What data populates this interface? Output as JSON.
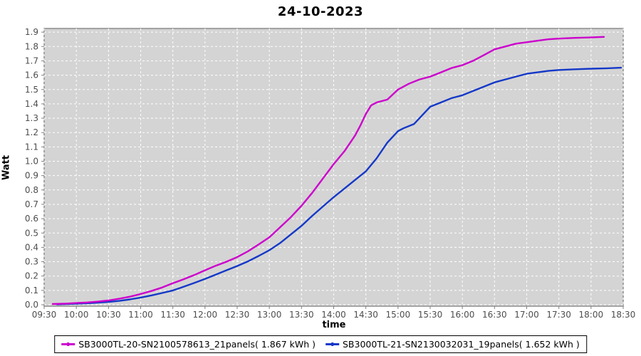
{
  "title": "24-10-2023",
  "colors": {
    "outer_bg": "#FFFFFF",
    "plot_bg": "#D4D4D4",
    "grid": "#FFFFFF",
    "plot_border": "#8C8C8C",
    "axis_tick": "#808080",
    "tick_label": "#4D4D4D",
    "legend_border": "#000000",
    "series_magenta": "#CC00CC",
    "series_blue": "#1438C8"
  },
  "chart_data": {
    "type": "line",
    "title": "24-10-2023",
    "xlabel": "time",
    "ylabel": "Watt",
    "x_ticks": [
      "09:30",
      "10:00",
      "10:30",
      "11:00",
      "11:30",
      "12:00",
      "12:30",
      "13:00",
      "13:30",
      "14:00",
      "14:30",
      "15:00",
      "15:30",
      "16:00",
      "16:30",
      "17:00",
      "17:30",
      "18:00",
      "18:30"
    ],
    "y_ticks": [
      "0.0",
      "0.1",
      "0.2",
      "0.3",
      "0.4",
      "0.5",
      "0.6",
      "0.7",
      "0.8",
      "0.9",
      "1.0",
      "1.1",
      "1.2",
      "1.3",
      "1.4",
      "1.5",
      "1.6",
      "1.7",
      "1.8",
      "1.9"
    ],
    "x_range": [
      "09:30",
      "18:30"
    ],
    "ylim": [
      0,
      1.93
    ],
    "grid": "white dashed gridlines on light gray plot background",
    "legend_position": "bottom-center",
    "series": [
      {
        "name": "SB3000TL-20-SN2100578613_21panels",
        "legend_label": "SB3000TL-20-SN2100578613_21panels( 1.867 kWh )",
        "total_kwh": 1.867,
        "color": "#CC00CC",
        "points": [
          [
            "09:38",
            0.005
          ],
          [
            "09:50",
            0.008
          ],
          [
            "10:00",
            0.012
          ],
          [
            "10:10",
            0.016
          ],
          [
            "10:20",
            0.022
          ],
          [
            "10:30",
            0.03
          ],
          [
            "10:40",
            0.042
          ],
          [
            "10:50",
            0.056
          ],
          [
            "11:00",
            0.075
          ],
          [
            "11:10",
            0.096
          ],
          [
            "11:20",
            0.12
          ],
          [
            "11:30",
            0.15
          ],
          [
            "11:40",
            0.177
          ],
          [
            "11:50",
            0.207
          ],
          [
            "12:00",
            0.24
          ],
          [
            "12:10",
            0.272
          ],
          [
            "12:20",
            0.3
          ],
          [
            "12:30",
            0.332
          ],
          [
            "12:40",
            0.372
          ],
          [
            "12:50",
            0.42
          ],
          [
            "13:00",
            0.47
          ],
          [
            "13:10",
            0.54
          ],
          [
            "13:20",
            0.61
          ],
          [
            "13:30",
            0.69
          ],
          [
            "13:40",
            0.78
          ],
          [
            "13:50",
            0.88
          ],
          [
            "14:00",
            0.98
          ],
          [
            "14:10",
            1.07
          ],
          [
            "14:20",
            1.18
          ],
          [
            "14:25",
            1.25
          ],
          [
            "14:30",
            1.33
          ],
          [
            "14:35",
            1.39
          ],
          [
            "14:40",
            1.41
          ],
          [
            "14:50",
            1.43
          ],
          [
            "15:00",
            1.5
          ],
          [
            "15:10",
            1.54
          ],
          [
            "15:20",
            1.57
          ],
          [
            "15:30",
            1.59
          ],
          [
            "15:40",
            1.62
          ],
          [
            "15:50",
            1.65
          ],
          [
            "16:00",
            1.67
          ],
          [
            "16:10",
            1.7
          ],
          [
            "16:20",
            1.74
          ],
          [
            "16:30",
            1.78
          ],
          [
            "16:40",
            1.8
          ],
          [
            "16:50",
            1.82
          ],
          [
            "17:00",
            1.83
          ],
          [
            "17:10",
            1.84
          ],
          [
            "17:20",
            1.85
          ],
          [
            "17:30",
            1.855
          ],
          [
            "17:45",
            1.86
          ],
          [
            "18:00",
            1.863
          ],
          [
            "18:12",
            1.867
          ]
        ]
      },
      {
        "name": "SB3000TL-21-SN2130032031_19panels",
        "legend_label": "SB3000TL-21-SN2130032031_19panels( 1.652 kWh )",
        "total_kwh": 1.652,
        "color": "#1438C8",
        "points": [
          [
            "09:42",
            0.003
          ],
          [
            "10:00",
            0.007
          ],
          [
            "10:15",
            0.012
          ],
          [
            "10:30",
            0.02
          ],
          [
            "10:40",
            0.027
          ],
          [
            "10:50",
            0.037
          ],
          [
            "11:00",
            0.05
          ],
          [
            "11:10",
            0.065
          ],
          [
            "11:20",
            0.082
          ],
          [
            "11:30",
            0.1
          ],
          [
            "11:40",
            0.125
          ],
          [
            "11:50",
            0.152
          ],
          [
            "12:00",
            0.18
          ],
          [
            "12:10",
            0.21
          ],
          [
            "12:20",
            0.24
          ],
          [
            "12:30",
            0.27
          ],
          [
            "12:40",
            0.302
          ],
          [
            "12:50",
            0.34
          ],
          [
            "13:00",
            0.38
          ],
          [
            "13:10",
            0.43
          ],
          [
            "13:20",
            0.49
          ],
          [
            "13:30",
            0.55
          ],
          [
            "13:40",
            0.62
          ],
          [
            "13:50",
            0.685
          ],
          [
            "14:00",
            0.75
          ],
          [
            "14:10",
            0.81
          ],
          [
            "14:20",
            0.87
          ],
          [
            "14:30",
            0.93
          ],
          [
            "14:40",
            1.02
          ],
          [
            "14:50",
            1.13
          ],
          [
            "15:00",
            1.21
          ],
          [
            "15:05",
            1.23
          ],
          [
            "15:15",
            1.26
          ],
          [
            "15:20",
            1.3
          ],
          [
            "15:30",
            1.38
          ],
          [
            "15:40",
            1.41
          ],
          [
            "15:50",
            1.44
          ],
          [
            "16:00",
            1.46
          ],
          [
            "16:10",
            1.49
          ],
          [
            "16:20",
            1.52
          ],
          [
            "16:30",
            1.55
          ],
          [
            "16:40",
            1.57
          ],
          [
            "16:50",
            1.59
          ],
          [
            "17:00",
            1.61
          ],
          [
            "17:10",
            1.62
          ],
          [
            "17:20",
            1.63
          ],
          [
            "17:30",
            1.636
          ],
          [
            "17:45",
            1.641
          ],
          [
            "18:00",
            1.645
          ],
          [
            "18:15",
            1.648
          ],
          [
            "18:28",
            1.652
          ]
        ]
      }
    ]
  }
}
